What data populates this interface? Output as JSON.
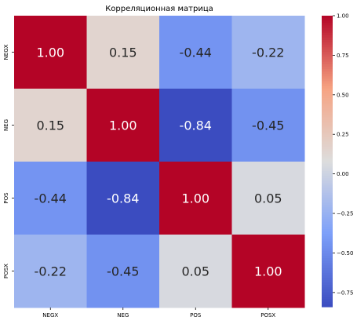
{
  "chart_data": {
    "type": "heatmap",
    "title": "Корреляционная матрица",
    "row_labels": [
      "NEGX",
      "NEG",
      "POS",
      "POSX"
    ],
    "col_labels": [
      "NEGX",
      "NEG",
      "POS",
      "POSX"
    ],
    "values": [
      [
        1.0,
        0.15,
        -0.44,
        -0.22
      ],
      [
        0.15,
        1.0,
        -0.84,
        -0.45
      ],
      [
        -0.44,
        -0.84,
        1.0,
        0.05
      ],
      [
        -0.22,
        -0.45,
        0.05,
        1.0
      ]
    ],
    "cell_labels": [
      [
        "1.00",
        "0.15",
        "-0.44",
        "-0.22"
      ],
      [
        "0.15",
        "1.00",
        "-0.84",
        "-0.45"
      ],
      [
        "-0.44",
        "-0.84",
        "1.00",
        "0.05"
      ],
      [
        "-0.22",
        "-0.45",
        "0.05",
        "1.00"
      ]
    ],
    "colormap": "coolwarm",
    "colorbar": {
      "range": [
        -0.84,
        1.0
      ],
      "ticks": [
        1.0,
        0.75,
        0.5,
        0.25,
        0.0,
        -0.25,
        -0.5,
        -0.75
      ],
      "tick_labels": [
        "1.00",
        "0.75",
        "0.50",
        "0.25",
        "0.00",
        "−0.25",
        "−0.50",
        "−0.75"
      ]
    }
  }
}
